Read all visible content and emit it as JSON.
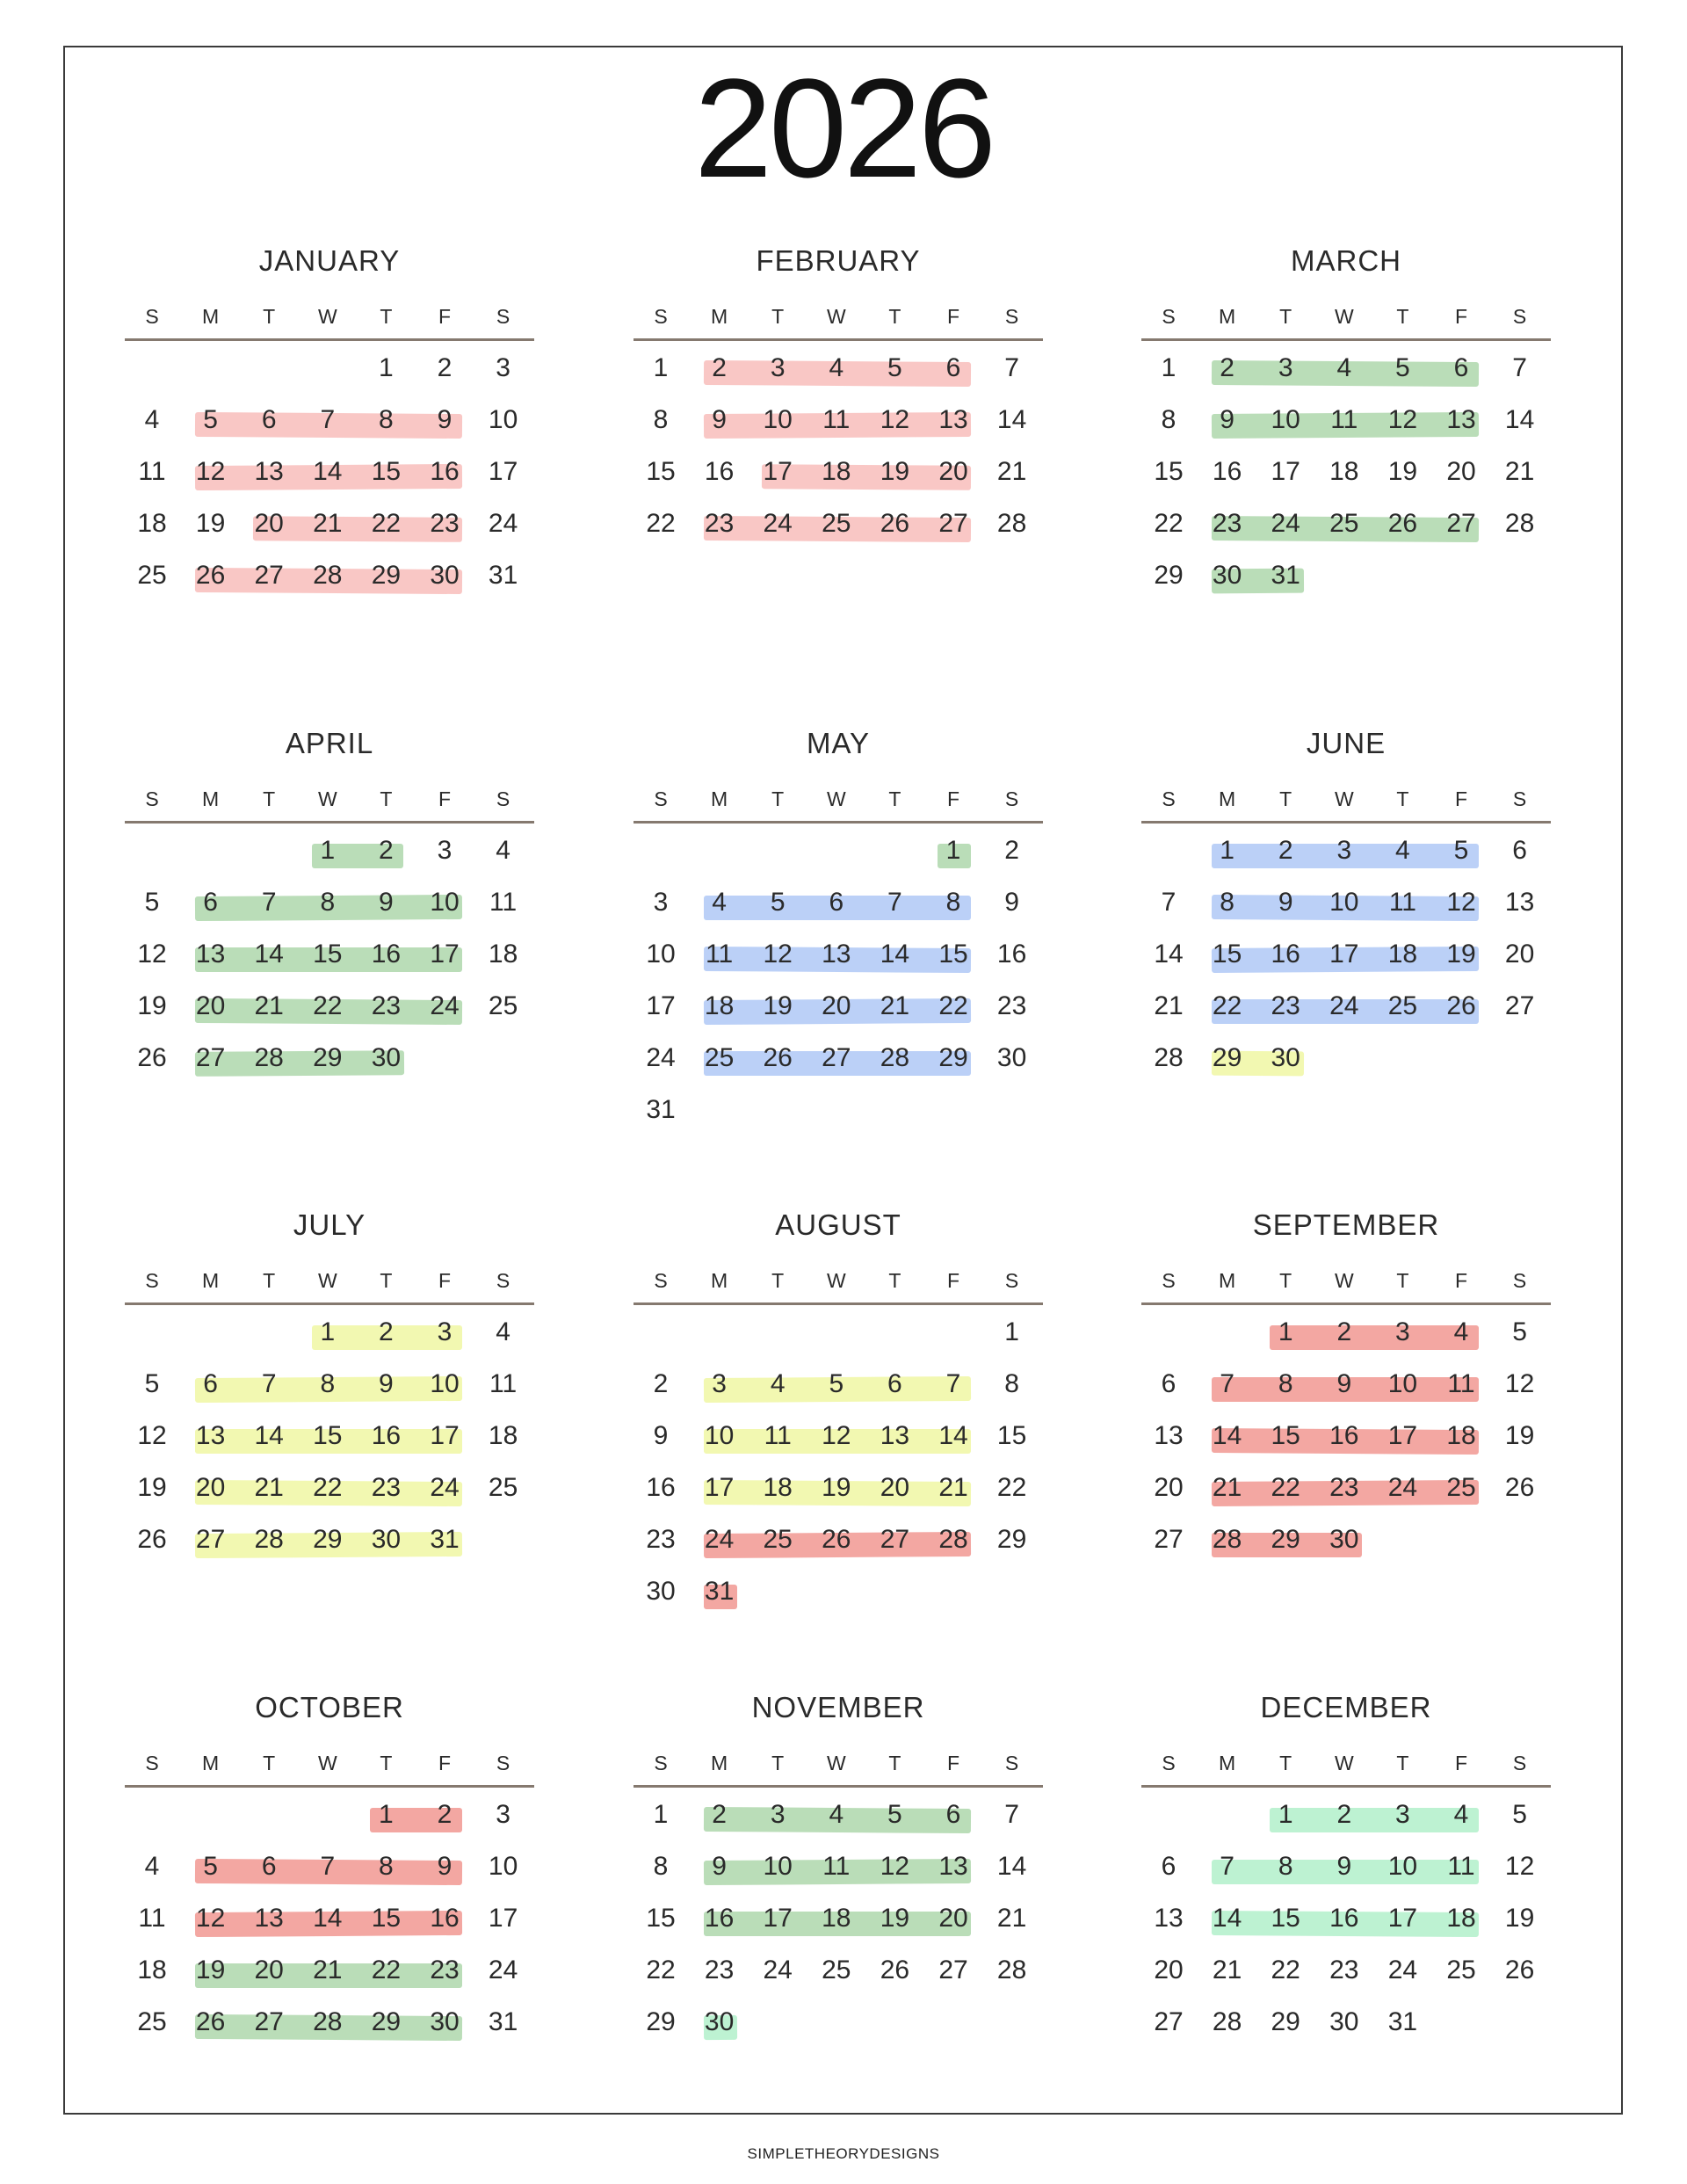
{
  "year": "2026",
  "footer": "SIMPLETHEORYDESIGNS",
  "weekday_labels": [
    "S",
    "M",
    "T",
    "W",
    "T",
    "F",
    "S"
  ],
  "highlight_colors": {
    "pink": "#f9c4c2",
    "green": "#b6dbb4",
    "blue": "#b7cdf7",
    "yellow": "#f1f8ad",
    "red": "#f2a29d",
    "mint": "#b9f1d0"
  },
  "months": [
    {
      "name": "JANUARY",
      "weeks": [
        [
          null,
          null,
          null,
          null,
          1,
          2,
          3
        ],
        [
          4,
          5,
          6,
          7,
          8,
          9,
          10
        ],
        [
          11,
          12,
          13,
          14,
          15,
          16,
          17
        ],
        [
          18,
          19,
          20,
          21,
          22,
          23,
          24
        ],
        [
          25,
          26,
          27,
          28,
          29,
          30,
          31
        ]
      ],
      "highlights": [
        {
          "color": "pink",
          "from": 5,
          "to": 9
        },
        {
          "color": "pink",
          "from": 12,
          "to": 16
        },
        {
          "color": "pink",
          "from": 20,
          "to": 23
        },
        {
          "color": "pink",
          "from": 26,
          "to": 30
        }
      ]
    },
    {
      "name": "FEBRUARY",
      "weeks": [
        [
          1,
          2,
          3,
          4,
          5,
          6,
          7
        ],
        [
          8,
          9,
          10,
          11,
          12,
          13,
          14
        ],
        [
          15,
          16,
          17,
          18,
          19,
          20,
          21
        ],
        [
          22,
          23,
          24,
          25,
          26,
          27,
          28
        ]
      ],
      "highlights": [
        {
          "color": "pink",
          "from": 2,
          "to": 6
        },
        {
          "color": "pink",
          "from": 9,
          "to": 13
        },
        {
          "color": "pink",
          "from": 17,
          "to": 20
        },
        {
          "color": "pink",
          "from": 23,
          "to": 27
        }
      ]
    },
    {
      "name": "MARCH",
      "weeks": [
        [
          1,
          2,
          3,
          4,
          5,
          6,
          7
        ],
        [
          8,
          9,
          10,
          11,
          12,
          13,
          14
        ],
        [
          15,
          16,
          17,
          18,
          19,
          20,
          21
        ],
        [
          22,
          23,
          24,
          25,
          26,
          27,
          28
        ],
        [
          29,
          30,
          31,
          null,
          null,
          null,
          null
        ]
      ],
      "highlights": [
        {
          "color": "green",
          "from": 2,
          "to": 6
        },
        {
          "color": "green",
          "from": 9,
          "to": 13
        },
        {
          "color": "green",
          "from": 23,
          "to": 27
        },
        {
          "color": "green",
          "from": 30,
          "to": 31
        }
      ]
    },
    {
      "name": "APRIL",
      "weeks": [
        [
          null,
          null,
          null,
          1,
          2,
          3,
          4
        ],
        [
          5,
          6,
          7,
          8,
          9,
          10,
          11
        ],
        [
          12,
          13,
          14,
          15,
          16,
          17,
          18
        ],
        [
          19,
          20,
          21,
          22,
          23,
          24,
          25
        ],
        [
          26,
          27,
          28,
          29,
          30,
          null,
          null
        ]
      ],
      "highlights": [
        {
          "color": "green",
          "from": 1,
          "to": 2
        },
        {
          "color": "green",
          "from": 6,
          "to": 10
        },
        {
          "color": "green",
          "from": 13,
          "to": 17
        },
        {
          "color": "green",
          "from": 20,
          "to": 24
        },
        {
          "color": "green",
          "from": 27,
          "to": 30
        }
      ]
    },
    {
      "name": "MAY",
      "weeks": [
        [
          null,
          null,
          null,
          null,
          null,
          1,
          2
        ],
        [
          3,
          4,
          5,
          6,
          7,
          8,
          9
        ],
        [
          10,
          11,
          12,
          13,
          14,
          15,
          16
        ],
        [
          17,
          18,
          19,
          20,
          21,
          22,
          23
        ],
        [
          24,
          25,
          26,
          27,
          28,
          29,
          30
        ],
        [
          31,
          null,
          null,
          null,
          null,
          null,
          null
        ]
      ],
      "highlights": [
        {
          "color": "green",
          "from": 1,
          "to": 1
        },
        {
          "color": "blue",
          "from": 4,
          "to": 8
        },
        {
          "color": "blue",
          "from": 11,
          "to": 15
        },
        {
          "color": "blue",
          "from": 18,
          "to": 22
        },
        {
          "color": "blue",
          "from": 25,
          "to": 29
        }
      ]
    },
    {
      "name": "JUNE",
      "weeks": [
        [
          null,
          1,
          2,
          3,
          4,
          5,
          6
        ],
        [
          7,
          8,
          9,
          10,
          11,
          12,
          13
        ],
        [
          14,
          15,
          16,
          17,
          18,
          19,
          20
        ],
        [
          21,
          22,
          23,
          24,
          25,
          26,
          27
        ],
        [
          28,
          29,
          30,
          null,
          null,
          null,
          null
        ]
      ],
      "highlights": [
        {
          "color": "blue",
          "from": 1,
          "to": 5
        },
        {
          "color": "blue",
          "from": 8,
          "to": 12
        },
        {
          "color": "blue",
          "from": 15,
          "to": 19
        },
        {
          "color": "blue",
          "from": 22,
          "to": 26
        },
        {
          "color": "yellow",
          "from": 29,
          "to": 30
        }
      ]
    },
    {
      "name": "JULY",
      "weeks": [
        [
          null,
          null,
          null,
          1,
          2,
          3,
          4
        ],
        [
          5,
          6,
          7,
          8,
          9,
          10,
          11
        ],
        [
          12,
          13,
          14,
          15,
          16,
          17,
          18
        ],
        [
          19,
          20,
          21,
          22,
          23,
          24,
          25
        ],
        [
          26,
          27,
          28,
          29,
          30,
          31,
          null
        ]
      ],
      "highlights": [
        {
          "color": "yellow",
          "from": 1,
          "to": 3
        },
        {
          "color": "yellow",
          "from": 6,
          "to": 10
        },
        {
          "color": "yellow",
          "from": 13,
          "to": 17
        },
        {
          "color": "yellow",
          "from": 20,
          "to": 24
        },
        {
          "color": "yellow",
          "from": 27,
          "to": 31
        }
      ]
    },
    {
      "name": "AUGUST",
      "weeks": [
        [
          null,
          null,
          null,
          null,
          null,
          null,
          1
        ],
        [
          2,
          3,
          4,
          5,
          6,
          7,
          8
        ],
        [
          9,
          10,
          11,
          12,
          13,
          14,
          15
        ],
        [
          16,
          17,
          18,
          19,
          20,
          21,
          22
        ],
        [
          23,
          24,
          25,
          26,
          27,
          28,
          29
        ],
        [
          30,
          31,
          null,
          null,
          null,
          null,
          null
        ]
      ],
      "highlights": [
        {
          "color": "yellow",
          "from": 3,
          "to": 7
        },
        {
          "color": "yellow",
          "from": 10,
          "to": 14
        },
        {
          "color": "yellow",
          "from": 17,
          "to": 21
        },
        {
          "color": "red",
          "from": 24,
          "to": 28
        },
        {
          "color": "red",
          "from": 31,
          "to": 31
        }
      ]
    },
    {
      "name": "SEPTEMBER",
      "weeks": [
        [
          null,
          null,
          1,
          2,
          3,
          4,
          5
        ],
        [
          6,
          7,
          8,
          9,
          10,
          11,
          12
        ],
        [
          13,
          14,
          15,
          16,
          17,
          18,
          19
        ],
        [
          20,
          21,
          22,
          23,
          24,
          25,
          26
        ],
        [
          27,
          28,
          29,
          30,
          null,
          null,
          null
        ]
      ],
      "highlights": [
        {
          "color": "red",
          "from": 1,
          "to": 4
        },
        {
          "color": "red",
          "from": 7,
          "to": 11
        },
        {
          "color": "red",
          "from": 14,
          "to": 18
        },
        {
          "color": "red",
          "from": 21,
          "to": 25
        },
        {
          "color": "red",
          "from": 28,
          "to": 30
        }
      ]
    },
    {
      "name": "OCTOBER",
      "weeks": [
        [
          null,
          null,
          null,
          null,
          1,
          2,
          3
        ],
        [
          4,
          5,
          6,
          7,
          8,
          9,
          10
        ],
        [
          11,
          12,
          13,
          14,
          15,
          16,
          17
        ],
        [
          18,
          19,
          20,
          21,
          22,
          23,
          24
        ],
        [
          25,
          26,
          27,
          28,
          29,
          30,
          31
        ]
      ],
      "highlights": [
        {
          "color": "red",
          "from": 1,
          "to": 2
        },
        {
          "color": "red",
          "from": 5,
          "to": 9
        },
        {
          "color": "red",
          "from": 12,
          "to": 16
        },
        {
          "color": "green",
          "from": 19,
          "to": 23
        },
        {
          "color": "green",
          "from": 26,
          "to": 30
        }
      ]
    },
    {
      "name": "NOVEMBER",
      "weeks": [
        [
          1,
          2,
          3,
          4,
          5,
          6,
          7
        ],
        [
          8,
          9,
          10,
          11,
          12,
          13,
          14
        ],
        [
          15,
          16,
          17,
          18,
          19,
          20,
          21
        ],
        [
          22,
          23,
          24,
          25,
          26,
          27,
          28
        ],
        [
          29,
          30,
          null,
          null,
          null,
          null,
          null
        ]
      ],
      "highlights": [
        {
          "color": "green",
          "from": 2,
          "to": 6
        },
        {
          "color": "green",
          "from": 9,
          "to": 13
        },
        {
          "color": "green",
          "from": 16,
          "to": 20
        },
        {
          "color": "mint",
          "from": 30,
          "to": 30
        }
      ]
    },
    {
      "name": "DECEMBER",
      "weeks": [
        [
          null,
          null,
          1,
          2,
          3,
          4,
          5
        ],
        [
          6,
          7,
          8,
          9,
          10,
          11,
          12
        ],
        [
          13,
          14,
          15,
          16,
          17,
          18,
          19
        ],
        [
          20,
          21,
          22,
          23,
          24,
          25,
          26
        ],
        [
          27,
          28,
          29,
          30,
          31,
          null,
          null
        ]
      ],
      "highlights": [
        {
          "color": "mint",
          "from": 1,
          "to": 4
        },
        {
          "color": "mint",
          "from": 7,
          "to": 11
        },
        {
          "color": "mint",
          "from": 14,
          "to": 18
        }
      ]
    }
  ]
}
